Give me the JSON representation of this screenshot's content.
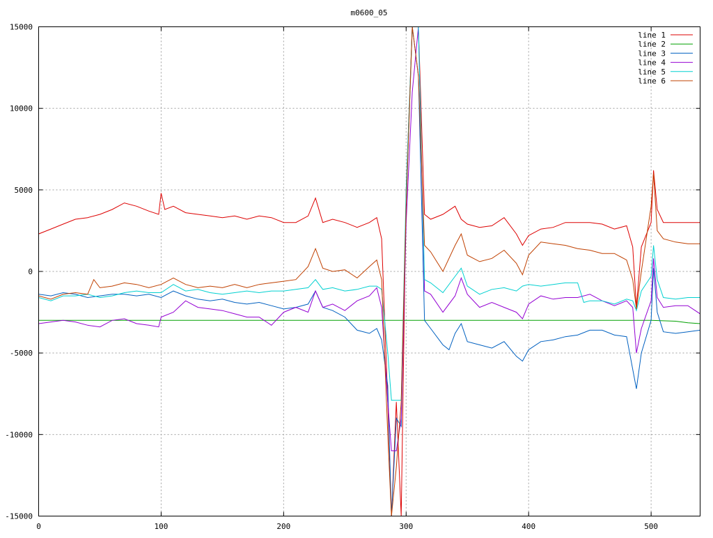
{
  "chart_data": {
    "type": "line",
    "title": "m0600_05",
    "xlabel": "",
    "ylabel": "",
    "xlim": [
      0,
      540
    ],
    "ylim": [
      -15000,
      15000
    ],
    "xticks": [
      0,
      100,
      200,
      300,
      400,
      500
    ],
    "yticks": [
      -15000,
      -10000,
      -5000,
      0,
      5000,
      10000,
      15000
    ],
    "grid": true,
    "legend_position": "top-right",
    "series": [
      {
        "name": "line 1",
        "color": "#dd0000",
        "x": [
          0,
          10,
          20,
          30,
          40,
          50,
          60,
          70,
          80,
          90,
          98,
          100,
          103,
          110,
          120,
          130,
          140,
          150,
          160,
          170,
          180,
          190,
          200,
          210,
          220,
          226,
          232,
          240,
          250,
          260,
          270,
          276,
          280,
          285,
          288,
          292,
          296,
          300,
          305,
          310,
          315,
          320,
          330,
          340,
          345,
          350,
          360,
          370,
          380,
          390,
          395,
          400,
          410,
          420,
          430,
          440,
          450,
          460,
          470,
          480,
          485,
          488,
          492,
          500,
          502,
          505,
          510,
          520,
          530,
          540
        ],
        "y": [
          2300,
          2600,
          2900,
          3200,
          3300,
          3500,
          3800,
          4200,
          4000,
          3700,
          3500,
          4800,
          3800,
          4000,
          3600,
          3500,
          3400,
          3300,
          3400,
          3200,
          3400,
          3300,
          3000,
          3000,
          3400,
          4500,
          3000,
          3200,
          3000,
          2700,
          3000,
          3300,
          2000,
          -8000,
          -15000,
          -8000,
          -15000,
          5000,
          15000,
          15000,
          3500,
          3200,
          3500,
          4000,
          3200,
          2900,
          2700,
          2800,
          3300,
          2300,
          1600,
          2200,
          2600,
          2700,
          3000,
          3000,
          3000,
          2900,
          2600,
          2800,
          1500,
          -2200,
          1500,
          3000,
          6200,
          3800,
          3000,
          3000,
          3000,
          3000
        ]
      },
      {
        "name": "line 2",
        "color": "#00a000",
        "x": [
          0,
          100,
          200,
          300,
          400,
          500,
          520,
          530,
          540
        ],
        "y": [
          -3000,
          -3000,
          -3000,
          -3000,
          -3000,
          -3000,
          -3050,
          -3150,
          -3200
        ]
      },
      {
        "name": "line 3",
        "color": "#0060c0",
        "x": [
          0,
          10,
          20,
          30,
          40,
          50,
          60,
          70,
          80,
          90,
          100,
          110,
          120,
          130,
          140,
          150,
          160,
          170,
          180,
          190,
          200,
          210,
          220,
          226,
          232,
          240,
          250,
          260,
          270,
          276,
          280,
          285,
          288,
          292,
          296,
          300,
          305,
          310,
          315,
          320,
          330,
          335,
          340,
          345,
          350,
          360,
          370,
          380,
          390,
          395,
          400,
          410,
          420,
          430,
          440,
          450,
          460,
          470,
          480,
          485,
          488,
          492,
          500,
          502,
          505,
          510,
          520,
          530,
          540
        ],
        "y": [
          -1400,
          -1500,
          -1300,
          -1400,
          -1600,
          -1500,
          -1400,
          -1400,
          -1500,
          -1400,
          -1600,
          -1200,
          -1500,
          -1700,
          -1800,
          -1700,
          -1900,
          -2000,
          -1900,
          -2100,
          -2300,
          -2200,
          -2000,
          -1200,
          -2200,
          -2400,
          -2800,
          -3600,
          -3800,
          -3500,
          -4200,
          -7000,
          -15000,
          -9000,
          -9500,
          4000,
          15000,
          12000,
          -3000,
          -3500,
          -4500,
          -4800,
          -3800,
          -3200,
          -4300,
          -4500,
          -4700,
          -4300,
          -5200,
          -5500,
          -4800,
          -4300,
          -4200,
          -4000,
          -3900,
          -3600,
          -3600,
          -3900,
          -4000,
          -6000,
          -7200,
          -5000,
          -3000,
          200,
          -2500,
          -3700,
          -3800,
          -3700,
          -3600
        ]
      },
      {
        "name": "line 4",
        "color": "#9400d3",
        "x": [
          0,
          10,
          20,
          30,
          40,
          50,
          60,
          70,
          80,
          90,
          98,
          100,
          110,
          120,
          130,
          140,
          150,
          160,
          170,
          180,
          190,
          200,
          210,
          220,
          226,
          232,
          240,
          250,
          260,
          270,
          276,
          280,
          285,
          288,
          292,
          296,
          300,
          305,
          310,
          315,
          320,
          330,
          340,
          345,
          350,
          360,
          370,
          380,
          390,
          395,
          400,
          410,
          420,
          430,
          440,
          450,
          460,
          470,
          480,
          485,
          488,
          492,
          500,
          502,
          505,
          510,
          520,
          530,
          540
        ],
        "y": [
          -3200,
          -3100,
          -3000,
          -3100,
          -3300,
          -3400,
          -3000,
          -2900,
          -3200,
          -3300,
          -3400,
          -2800,
          -2500,
          -1800,
          -2200,
          -2300,
          -2400,
          -2600,
          -2800,
          -2800,
          -3300,
          -2500,
          -2200,
          -2500,
          -1200,
          -2200,
          -2000,
          -2400,
          -1800,
          -1500,
          -1000,
          -2200,
          -8000,
          -11000,
          -11000,
          -9000,
          3000,
          11000,
          15000,
          -1200,
          -1400,
          -2500,
          -1500,
          -400,
          -1400,
          -2200,
          -1900,
          -2200,
          -2500,
          -2900,
          -2000,
          -1500,
          -1700,
          -1600,
          -1600,
          -1400,
          -1800,
          -2100,
          -1800,
          -2200,
          -5000,
          -3500,
          -1800,
          800,
          -1600,
          -2200,
          -2100,
          -2100,
          -2600
        ]
      },
      {
        "name": "line 5",
        "color": "#00d0d0",
        "x": [
          0,
          10,
          20,
          30,
          40,
          50,
          60,
          70,
          80,
          90,
          100,
          110,
          120,
          130,
          140,
          150,
          160,
          170,
          180,
          190,
          200,
          210,
          220,
          226,
          232,
          240,
          250,
          260,
          270,
          276,
          280,
          285,
          288,
          292,
          296,
          300,
          305,
          310,
          315,
          320,
          330,
          340,
          345,
          350,
          360,
          370,
          380,
          390,
          395,
          400,
          410,
          420,
          430,
          440,
          445,
          450,
          460,
          470,
          480,
          485,
          488,
          492,
          500,
          502,
          505,
          510,
          520,
          530,
          540
        ],
        "y": [
          -1600,
          -1800,
          -1500,
          -1500,
          -1400,
          -1600,
          -1500,
          -1300,
          -1200,
          -1300,
          -1300,
          -800,
          -1200,
          -1100,
          -1300,
          -1400,
          -1300,
          -1200,
          -1300,
          -1200,
          -1200,
          -1100,
          -1000,
          -500,
          -1100,
          -1000,
          -1200,
          -1100,
          -900,
          -900,
          -1100,
          -5000,
          -7900,
          -7900,
          -7900,
          5000,
          15000,
          15000,
          -500,
          -700,
          -1300,
          -300,
          200,
          -900,
          -1400,
          -1100,
          -1000,
          -1200,
          -900,
          -800,
          -900,
          -800,
          -700,
          -700,
          -1900,
          -1800,
          -1800,
          -2000,
          -1700,
          -1800,
          -2400,
          -1200,
          -300,
          1600,
          -500,
          -1600,
          -1700,
          -1600,
          -1600
        ]
      },
      {
        "name": "line 6",
        "color": "#c04000",
        "x": [
          0,
          10,
          20,
          30,
          40,
          45,
          50,
          60,
          70,
          80,
          90,
          100,
          110,
          120,
          130,
          140,
          150,
          160,
          170,
          180,
          190,
          200,
          210,
          220,
          226,
          232,
          240,
          250,
          260,
          270,
          276,
          280,
          285,
          288,
          292,
          296,
          300,
          305,
          310,
          315,
          320,
          330,
          340,
          345,
          350,
          360,
          370,
          380,
          390,
          395,
          400,
          410,
          420,
          430,
          440,
          450,
          460,
          470,
          480,
          485,
          488,
          492,
          500,
          502,
          505,
          510,
          520,
          530,
          540
        ],
        "y": [
          -1500,
          -1700,
          -1400,
          -1300,
          -1400,
          -500,
          -1000,
          -900,
          -700,
          -800,
          -1000,
          -800,
          -400,
          -800,
          -1000,
          -900,
          -1000,
          -800,
          -1000,
          -800,
          -700,
          -600,
          -500,
          300,
          1400,
          200,
          0,
          100,
          -400,
          300,
          700,
          -500,
          -10000,
          -15000,
          -12000,
          -8000,
          4000,
          15000,
          12000,
          1600,
          1200,
          0,
          1600,
          2300,
          1000,
          600,
          800,
          1300,
          500,
          -200,
          1000,
          1800,
          1700,
          1600,
          1400,
          1300,
          1100,
          1100,
          700,
          -500,
          -2300,
          0,
          4000,
          6000,
          2500,
          2000,
          1800,
          1700,
          1700
        ]
      }
    ]
  }
}
